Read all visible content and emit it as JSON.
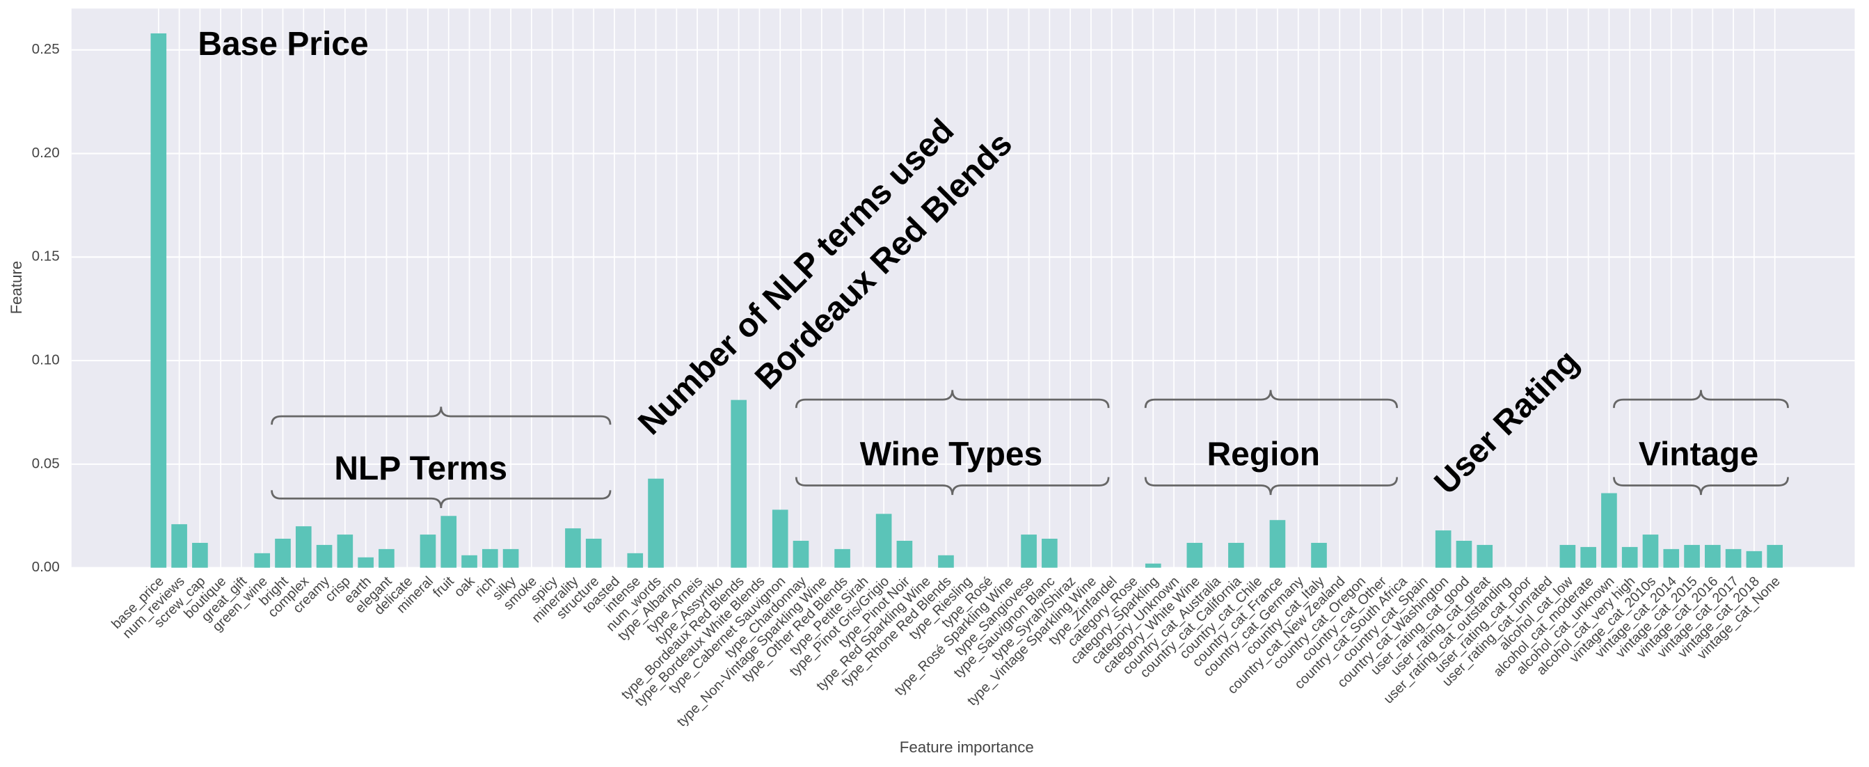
{
  "chart_data": {
    "type": "bar",
    "xlabel": "Feature importance",
    "ylabel": "Feature",
    "color": "#5bc4b8",
    "grid": true,
    "ylim": [
      0,
      0.27
    ],
    "yticks": [
      {
        "value": 0,
        "label": "0.00"
      },
      {
        "value": 0.05,
        "label": "0.05"
      },
      {
        "value": 0.1,
        "label": "0.10"
      },
      {
        "value": 0.15,
        "label": "0.15"
      },
      {
        "value": 0.2,
        "label": "0.20"
      },
      {
        "value": 0.25,
        "label": "0.25"
      }
    ],
    "categories": [
      "base_price",
      "num_reviews",
      "screw_cap",
      "boutique",
      "great_gift",
      "green_wine",
      "bright",
      "complex",
      "creamy",
      "crisp",
      "earth",
      "elegant",
      "delicate",
      "mineral",
      "fruit",
      "oak",
      "rich",
      "silky",
      "smoke",
      "spicy",
      "minerality",
      "structure",
      "toasted",
      "intense",
      "num_words",
      "type_Albarino",
      "type_Arneis",
      "type_Assyrtiko",
      "type_Bordeaux Red Blends",
      "type_Bordeaux White Blends",
      "type_Cabernet Sauvignon",
      "type_Chardonnay",
      "type_Non-Vintage Sparkling Wine",
      "type_Other Red Blends",
      "type_Petite Sirah",
      "type_Pinot Gris/Grigio",
      "type_Pinot Noir",
      "type_Red Sparkling Wine",
      "type_Rhone Red Blends",
      "type_Riesling",
      "type_Rosé",
      "type_Rosé Sparkling Wine",
      "type_Sangiovese",
      "type_Sauvignon Blanc",
      "type_Syrah/Shiraz",
      "type_Vintage Sparkling Wine",
      "type_Zinfandel",
      "category_Rose",
      "category_Sparkling",
      "category_Unknown",
      "category_White Wine",
      "country_cat_Australia",
      "country_cat_California",
      "country_cat_Chile",
      "country_cat_France",
      "country_cat_Germany",
      "country_cat_Italy",
      "country_cat_New Zealand",
      "country_cat_Oregon",
      "country_cat_Other",
      "country_cat_South Africa",
      "country_cat_Spain",
      "country_cat_Washington",
      "user_rating_cat_good",
      "user_rating_cat_great",
      "user_rating_cat_outstanding",
      "user_rating_cat_poor",
      "user_rating_cat_unrated",
      "alcohol_cat_low",
      "alcohol_cat_moderate",
      "alcohol_cat_unknown",
      "alcohol_cat_very high",
      "vintage_cat_2010s",
      "vintage_cat_2014",
      "vintage_cat_2015",
      "vintage_cat_2016",
      "vintage_cat_2017",
      "vintage_cat_2018",
      "vintage_cat_None"
    ],
    "values": [
      0.258,
      0.021,
      0.012,
      0,
      0,
      0.007,
      0.014,
      0.02,
      0.011,
      0.016,
      0.005,
      0.009,
      0,
      0.016,
      0.025,
      0.006,
      0.009,
      0.009,
      0,
      0,
      0.019,
      0.014,
      0,
      0.007,
      0.043,
      0,
      0,
      0,
      0.081,
      0,
      0.028,
      0.013,
      0,
      0.009,
      0,
      0.026,
      0.013,
      0,
      0.006,
      0,
      0,
      0,
      0.016,
      0.014,
      0,
      0,
      0,
      0,
      0.002,
      0,
      0.012,
      0,
      0.012,
      0,
      0.023,
      0,
      0.012,
      0,
      0,
      0,
      0,
      0,
      0.018,
      0.013,
      0.011,
      0,
      0,
      0,
      0.011,
      0.01,
      0.036,
      0.01,
      0.016,
      0.009,
      0.011,
      0.011,
      0.009,
      0.008,
      0.011
    ],
    "annotations": [
      "Base Price",
      "NLP Terms",
      "Number of NLP terms used",
      "Bordeaux Red Blends",
      "Wine Types",
      "Region",
      "User Rating",
      "Vintage"
    ]
  }
}
